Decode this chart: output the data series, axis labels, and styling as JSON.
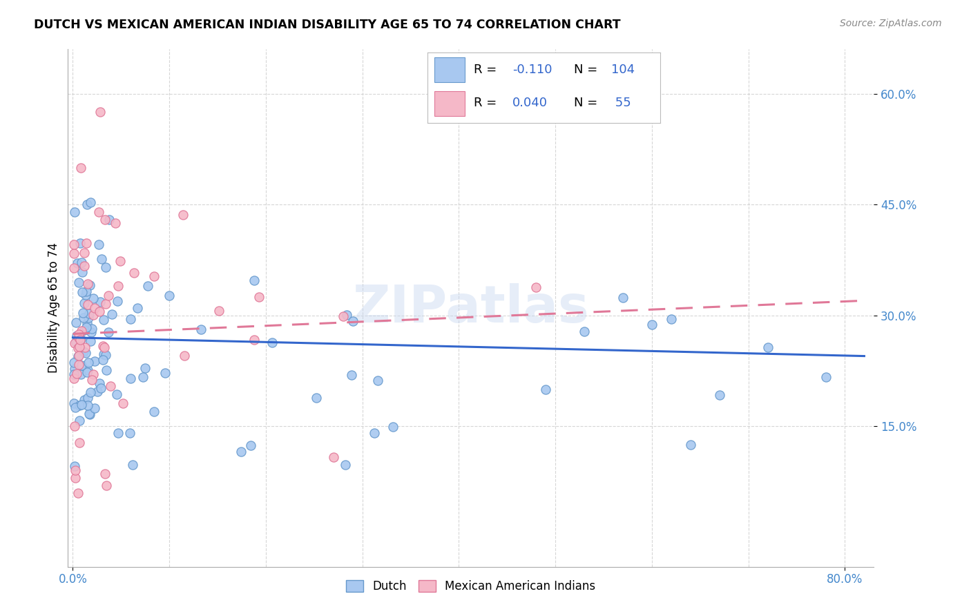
{
  "title": "DUTCH VS MEXICAN AMERICAN INDIAN DISABILITY AGE 65 TO 74 CORRELATION CHART",
  "source": "Source: ZipAtlas.com",
  "ylabel": "Disability Age 65 to 74",
  "x_tick_labels_ends": [
    "0.0%",
    "80.0%"
  ],
  "y_tick_labels": [
    "15.0%",
    "30.0%",
    "45.0%",
    "60.0%"
  ],
  "y_ticks": [
    0.15,
    0.3,
    0.45,
    0.6
  ],
  "xlim": [
    -0.005,
    0.83
  ],
  "ylim": [
    -0.04,
    0.66
  ],
  "dutch_color": "#a8c8f0",
  "dutch_edge_color": "#6699cc",
  "mexican_color": "#f5b8c8",
  "mexican_edge_color": "#e07898",
  "dutch_line_color": "#3366cc",
  "mexican_line_color": "#e07898",
  "r_dutch": -0.11,
  "n_dutch": 104,
  "r_mexican": 0.04,
  "n_mexican": 55,
  "watermark": "ZIPatlas",
  "tick_color": "#4488cc",
  "legend_box_color": "#ccddee",
  "grid_color": "#cccccc"
}
